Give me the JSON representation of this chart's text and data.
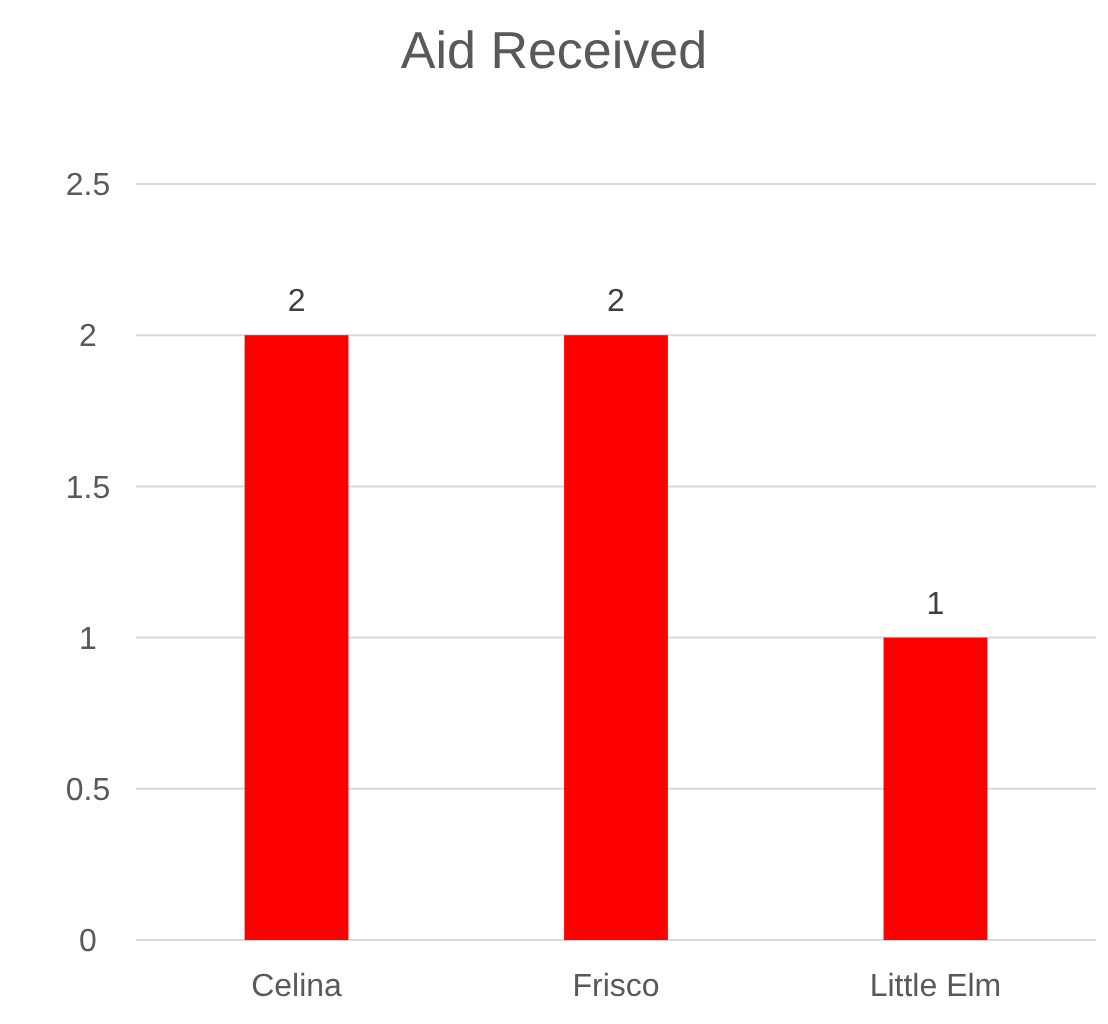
{
  "chart_data": {
    "type": "bar",
    "title": "Aid Received",
    "categories": [
      "Celina",
      "Frisco",
      "Little Elm"
    ],
    "values": [
      2,
      2,
      1
    ],
    "color": "#ff0000",
    "ylim": [
      0,
      2.5
    ],
    "yticks": [
      0,
      0.5,
      1,
      1.5,
      2,
      2.5
    ],
    "grid": "y",
    "data_labels": true
  }
}
